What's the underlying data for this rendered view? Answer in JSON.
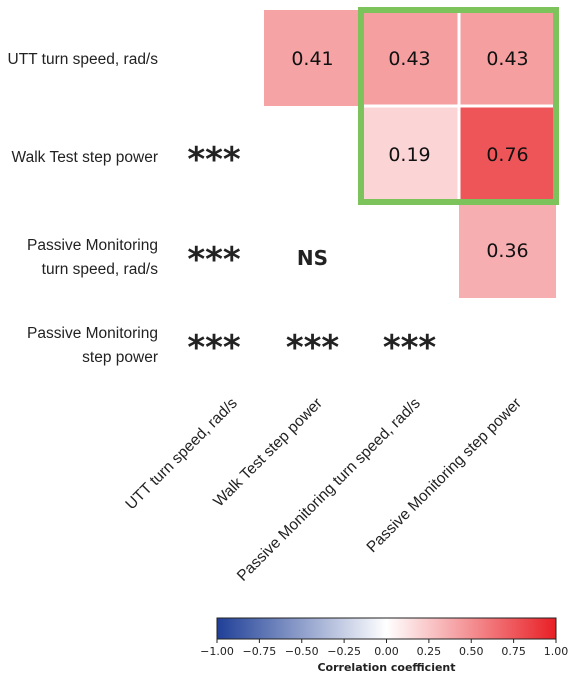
{
  "chart_data": {
    "type": "heatmap",
    "rows": [
      [
        "UTT turn speed, rad/s"
      ],
      [
        "Walk Test step power"
      ],
      [
        "Passive Monitoring",
        "turn speed, rad/s"
      ],
      [
        "Passive Monitoring",
        "step power"
      ]
    ],
    "columns": [
      "UTT turn speed, rad/s",
      "Walk Test step power",
      "Passive Monitoring turn speed, rad/s",
      "Passive Monitoring step power"
    ],
    "values": [
      [
        null,
        0.41,
        0.43,
        0.43
      ],
      [
        null,
        null,
        0.19,
        0.76
      ],
      [
        null,
        null,
        null,
        0.36
      ],
      [
        null,
        null,
        null,
        null
      ]
    ],
    "significance": [
      [
        null,
        null,
        null,
        null
      ],
      [
        "***",
        null,
        null,
        null
      ],
      [
        "***",
        "NS",
        null,
        null
      ],
      [
        "***",
        "***",
        "***",
        null
      ]
    ],
    "highlight": {
      "rows": [
        0,
        1
      ],
      "cols": [
        2,
        3
      ],
      "color": "#7dc35b"
    },
    "colorbar": {
      "title": "Correlation coefficient",
      "min": -1.0,
      "max": 1.0,
      "ticks": [
        "−1.00",
        "−0.75",
        "−0.50",
        "−0.25",
        "0.00",
        "0.25",
        "0.50",
        "0.75",
        "1.00"
      ],
      "colormap": [
        "#1f3f97",
        "#ffffff",
        "#e81f25"
      ]
    }
  }
}
